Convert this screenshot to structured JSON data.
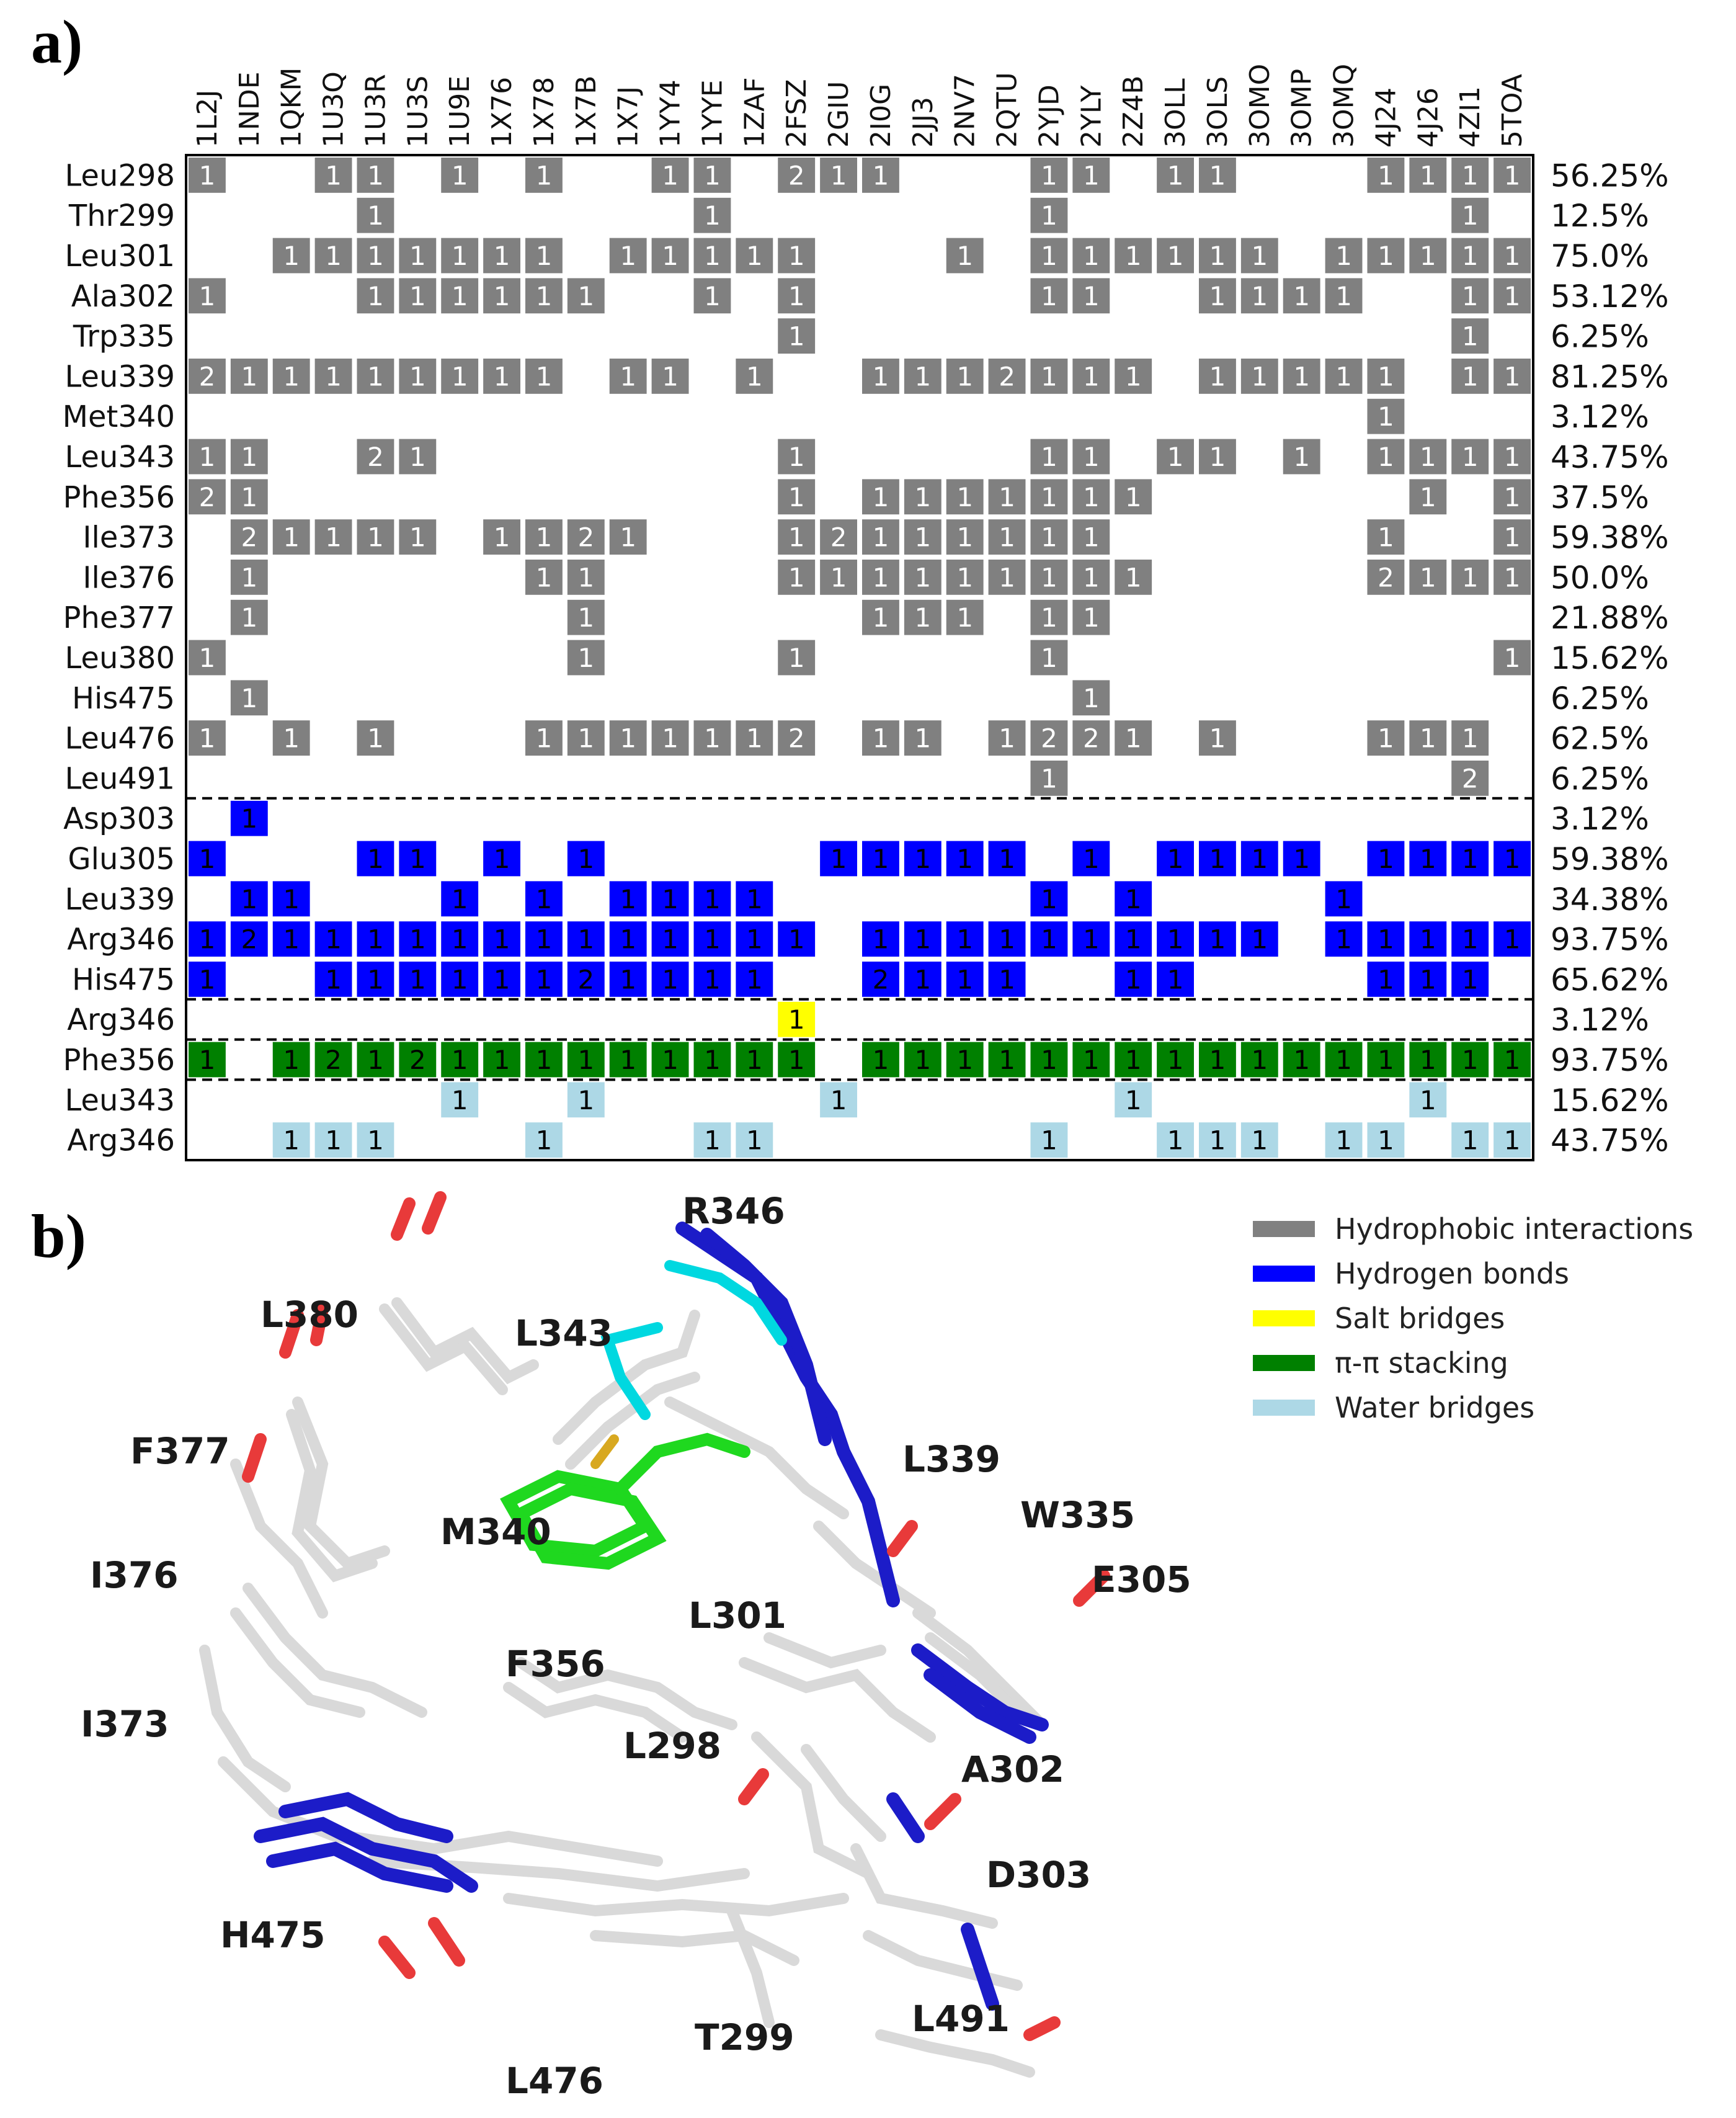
{
  "panel_a_label": "a)",
  "panel_b_label": "b)",
  "chart_data": {
    "type": "heatmap",
    "pdb_ids": [
      "1L2J",
      "1NDE",
      "1QKM",
      "1U3Q",
      "1U3R",
      "1U3S",
      "1U9E",
      "1X76",
      "1X78",
      "1X7B",
      "1X7J",
      "1YY4",
      "1YYE",
      "1ZAF",
      "2FSZ",
      "2GIU",
      "2I0G",
      "2JJ3",
      "2NV7",
      "2QTU",
      "2YJD",
      "2YLY",
      "2Z4B",
      "3OLL",
      "3OLS",
      "3OMO",
      "3OMP",
      "3OMQ",
      "4J24",
      "4J26",
      "4ZI1",
      "5TOA"
    ],
    "groups": [
      {
        "interaction": "Hydrophobic interactions",
        "color": "#808080",
        "text_color": "#ffffff",
        "rows": [
          {
            "residue": "Leu298",
            "percent": "56.25%",
            "values": [
              1,
              0,
              0,
              1,
              1,
              0,
              1,
              0,
              1,
              0,
              0,
              1,
              1,
              0,
              2,
              1,
              1,
              0,
              0,
              0,
              1,
              1,
              0,
              1,
              1,
              0,
              0,
              0,
              1,
              1,
              1,
              1
            ]
          },
          {
            "residue": "Thr299",
            "percent": "12.5%",
            "values": [
              0,
              0,
              0,
              0,
              1,
              0,
              0,
              0,
              0,
              0,
              0,
              0,
              1,
              0,
              0,
              0,
              0,
              0,
              0,
              0,
              1,
              0,
              0,
              0,
              0,
              0,
              0,
              0,
              0,
              0,
              1,
              0
            ]
          },
          {
            "residue": "Leu301",
            "percent": "75.0%",
            "values": [
              0,
              0,
              1,
              1,
              1,
              1,
              1,
              1,
              1,
              0,
              1,
              1,
              1,
              1,
              1,
              0,
              0,
              0,
              1,
              0,
              1,
              1,
              1,
              1,
              1,
              1,
              0,
              1,
              1,
              1,
              1,
              1
            ]
          },
          {
            "residue": "Ala302",
            "percent": "53.12%",
            "values": [
              1,
              0,
              0,
              0,
              1,
              1,
              1,
              1,
              1,
              1,
              0,
              0,
              1,
              0,
              1,
              0,
              0,
              0,
              0,
              0,
              1,
              1,
              0,
              0,
              1,
              1,
              1,
              1,
              0,
              0,
              1,
              1
            ]
          },
          {
            "residue": "Trp335",
            "percent": "6.25%",
            "values": [
              0,
              0,
              0,
              0,
              0,
              0,
              0,
              0,
              0,
              0,
              0,
              0,
              0,
              0,
              1,
              0,
              0,
              0,
              0,
              0,
              0,
              0,
              0,
              0,
              0,
              0,
              0,
              0,
              0,
              0,
              1,
              0
            ]
          },
          {
            "residue": "Leu339",
            "percent": "81.25%",
            "values": [
              2,
              1,
              1,
              1,
              1,
              1,
              1,
              1,
              1,
              0,
              1,
              1,
              0,
              1,
              0,
              0,
              1,
              1,
              1,
              2,
              1,
              1,
              1,
              0,
              1,
              1,
              1,
              1,
              1,
              0,
              1,
              1
            ]
          },
          {
            "residue": "Met340",
            "percent": "3.12%",
            "values": [
              0,
              0,
              0,
              0,
              0,
              0,
              0,
              0,
              0,
              0,
              0,
              0,
              0,
              0,
              0,
              0,
              0,
              0,
              0,
              0,
              0,
              0,
              0,
              0,
              0,
              0,
              0,
              0,
              1,
              0,
              0,
              0
            ]
          },
          {
            "residue": "Leu343",
            "percent": "43.75%",
            "values": [
              1,
              1,
              0,
              0,
              2,
              1,
              0,
              0,
              0,
              0,
              0,
              0,
              0,
              0,
              1,
              0,
              0,
              0,
              0,
              0,
              1,
              1,
              0,
              1,
              1,
              0,
              1,
              0,
              1,
              1,
              1,
              1
            ]
          },
          {
            "residue": "Phe356",
            "percent": "37.5%",
            "values": [
              2,
              1,
              0,
              0,
              0,
              0,
              0,
              0,
              0,
              0,
              0,
              0,
              0,
              0,
              1,
              0,
              1,
              1,
              1,
              1,
              1,
              1,
              1,
              0,
              0,
              0,
              0,
              0,
              0,
              1,
              0,
              1
            ]
          },
          {
            "residue": "Ile373",
            "percent": "59.38%",
            "values": [
              0,
              2,
              1,
              1,
              1,
              1,
              0,
              1,
              1,
              2,
              1,
              0,
              0,
              0,
              1,
              2,
              1,
              1,
              1,
              1,
              1,
              1,
              0,
              0,
              0,
              0,
              0,
              0,
              1,
              0,
              0,
              1
            ]
          },
          {
            "residue": "Ile376",
            "percent": "50.0%",
            "values": [
              0,
              1,
              0,
              0,
              0,
              0,
              0,
              0,
              1,
              1,
              0,
              0,
              0,
              0,
              1,
              1,
              1,
              1,
              1,
              1,
              1,
              1,
              1,
              0,
              0,
              0,
              0,
              0,
              2,
              1,
              1,
              1
            ]
          },
          {
            "residue": "Phe377",
            "percent": "21.88%",
            "values": [
              0,
              1,
              0,
              0,
              0,
              0,
              0,
              0,
              0,
              1,
              0,
              0,
              0,
              0,
              0,
              0,
              1,
              1,
              1,
              0,
              1,
              1,
              0,
              0,
              0,
              0,
              0,
              0,
              0,
              0,
              0,
              0
            ]
          },
          {
            "residue": "Leu380",
            "percent": "15.62%",
            "values": [
              1,
              0,
              0,
              0,
              0,
              0,
              0,
              0,
              0,
              1,
              0,
              0,
              0,
              0,
              1,
              0,
              0,
              0,
              0,
              0,
              1,
              0,
              0,
              0,
              0,
              0,
              0,
              0,
              0,
              0,
              0,
              1
            ]
          },
          {
            "residue": "His475",
            "percent": "6.25%",
            "values": [
              0,
              1,
              0,
              0,
              0,
              0,
              0,
              0,
              0,
              0,
              0,
              0,
              0,
              0,
              0,
              0,
              0,
              0,
              0,
              0,
              0,
              1,
              0,
              0,
              0,
              0,
              0,
              0,
              0,
              0,
              0,
              0
            ]
          },
          {
            "residue": "Leu476",
            "percent": "62.5%",
            "values": [
              1,
              0,
              1,
              0,
              1,
              0,
              0,
              0,
              1,
              1,
              1,
              1,
              1,
              1,
              2,
              0,
              1,
              1,
              0,
              1,
              2,
              2,
              1,
              0,
              1,
              0,
              0,
              0,
              1,
              1,
              1,
              0
            ]
          },
          {
            "residue": "Leu491",
            "percent": "6.25%",
            "values": [
              0,
              0,
              0,
              0,
              0,
              0,
              0,
              0,
              0,
              0,
              0,
              0,
              0,
              0,
              0,
              0,
              0,
              0,
              0,
              0,
              1,
              0,
              0,
              0,
              0,
              0,
              0,
              0,
              0,
              0,
              2,
              0
            ]
          }
        ]
      },
      {
        "interaction": "Hydrogen bonds",
        "color": "#0000ff",
        "text_color": "#000000",
        "rows": [
          {
            "residue": "Asp303",
            "percent": "3.12%",
            "values": [
              0,
              1,
              0,
              0,
              0,
              0,
              0,
              0,
              0,
              0,
              0,
              0,
              0,
              0,
              0,
              0,
              0,
              0,
              0,
              0,
              0,
              0,
              0,
              0,
              0,
              0,
              0,
              0,
              0,
              0,
              0,
              0
            ]
          },
          {
            "residue": "Glu305",
            "percent": "59.38%",
            "values": [
              1,
              0,
              0,
              0,
              1,
              1,
              0,
              1,
              0,
              1,
              0,
              0,
              0,
              0,
              0,
              1,
              1,
              1,
              1,
              1,
              0,
              1,
              0,
              1,
              1,
              1,
              1,
              0,
              1,
              1,
              1,
              1
            ]
          },
          {
            "residue": "Leu339",
            "percent": "34.38%",
            "values": [
              0,
              1,
              1,
              0,
              0,
              0,
              1,
              0,
              1,
              0,
              1,
              1,
              1,
              1,
              0,
              0,
              0,
              0,
              0,
              0,
              1,
              0,
              1,
              0,
              0,
              0,
              0,
              1,
              0,
              0,
              0,
              0
            ]
          },
          {
            "residue": "Arg346",
            "percent": "93.75%",
            "values": [
              1,
              2,
              1,
              1,
              1,
              1,
              1,
              1,
              1,
              1,
              1,
              1,
              1,
              1,
              1,
              0,
              1,
              1,
              1,
              1,
              1,
              1,
              1,
              1,
              1,
              1,
              0,
              1,
              1,
              1,
              1,
              1
            ]
          },
          {
            "residue": "His475",
            "percent": "65.62%",
            "values": [
              1,
              0,
              0,
              1,
              1,
              1,
              1,
              1,
              1,
              2,
              1,
              1,
              1,
              1,
              0,
              0,
              2,
              1,
              1,
              1,
              0,
              0,
              1,
              1,
              0,
              0,
              0,
              0,
              1,
              1,
              1,
              0
            ]
          }
        ]
      },
      {
        "interaction": "Salt bridges",
        "color": "#ffff00",
        "text_color": "#000000",
        "rows": [
          {
            "residue": "Arg346",
            "percent": "3.12%",
            "values": [
              0,
              0,
              0,
              0,
              0,
              0,
              0,
              0,
              0,
              0,
              0,
              0,
              0,
              0,
              1,
              0,
              0,
              0,
              0,
              0,
              0,
              0,
              0,
              0,
              0,
              0,
              0,
              0,
              0,
              0,
              0,
              0
            ]
          }
        ]
      },
      {
        "interaction": "π-π stacking",
        "color": "#008000",
        "text_color": "#000000",
        "rows": [
          {
            "residue": "Phe356",
            "percent": "93.75%",
            "values": [
              1,
              0,
              1,
              2,
              1,
              2,
              1,
              1,
              1,
              1,
              1,
              1,
              1,
              1,
              1,
              0,
              1,
              1,
              1,
              1,
              1,
              1,
              1,
              1,
              1,
              1,
              1,
              1,
              1,
              1,
              1,
              1
            ]
          }
        ]
      },
      {
        "interaction": "Water bridges",
        "color": "#add8e6",
        "text_color": "#000000",
        "rows": [
          {
            "residue": "Leu343",
            "percent": "15.62%",
            "values": [
              0,
              0,
              0,
              0,
              0,
              0,
              1,
              0,
              0,
              1,
              0,
              0,
              0,
              0,
              0,
              1,
              0,
              0,
              0,
              0,
              0,
              0,
              1,
              0,
              0,
              0,
              0,
              0,
              0,
              1,
              0,
              0
            ]
          },
          {
            "residue": "Arg346",
            "percent": "43.75%",
            "values": [
              0,
              0,
              1,
              1,
              1,
              0,
              0,
              0,
              1,
              0,
              0,
              0,
              1,
              1,
              0,
              0,
              0,
              0,
              0,
              0,
              1,
              0,
              0,
              1,
              1,
              1,
              0,
              1,
              1,
              0,
              1,
              1
            ]
          }
        ]
      }
    ]
  },
  "legend": [
    {
      "label": "Hydrophobic interactions",
      "color": "#808080"
    },
    {
      "label": "Hydrogen bonds",
      "color": "#0000ff"
    },
    {
      "label": "Salt bridges",
      "color": "#ffff00"
    },
    {
      "label": "π-π stacking",
      "color": "#008000"
    },
    {
      "label": "Water bridges",
      "color": "#add8e6"
    }
  ],
  "residue_labels": {
    "R346": "R346",
    "L380": "L380",
    "L343": "L343",
    "F377": "F377",
    "L339": "L339",
    "W335": "W335",
    "M340": "M340",
    "I376": "I376",
    "E305": "E305",
    "L301": "L301",
    "F356": "F356",
    "I373": "I373",
    "L298": "L298",
    "A302": "A302",
    "D303": "D303",
    "H475": "H475",
    "L491": "L491",
    "T299": "T299",
    "L476": "L476"
  }
}
